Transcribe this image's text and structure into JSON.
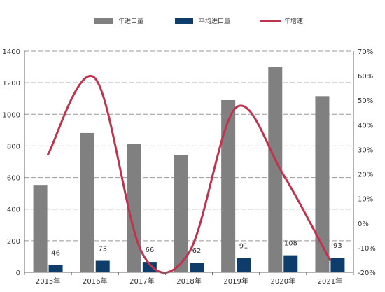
{
  "chart_data": {
    "type": "bar",
    "categories": [
      "2015年",
      "2016年",
      "2017年",
      "2018年",
      "2019年",
      "2020年",
      "2021年"
    ],
    "series": [
      {
        "name": "年进口量",
        "kind": "bar",
        "axis": "left",
        "color": "#808080",
        "values": [
          553,
          882,
          812,
          742,
          1090,
          1300,
          1115
        ]
      },
      {
        "name": "平均进口量",
        "kind": "bar",
        "axis": "left",
        "color": "#0e3d6b",
        "values": [
          46,
          73,
          66,
          62,
          91,
          108,
          93
        ]
      },
      {
        "name": "年增速",
        "kind": "line",
        "axis": "right",
        "color": "#c0334d",
        "values": [
          28,
          59,
          -12,
          -12,
          47,
          20,
          -15
        ]
      }
    ],
    "data_labels": [
      "46",
      "73",
      "66",
      "62",
      "91",
      "108",
      "93"
    ],
    "y_left": {
      "min": 0,
      "max": 1400,
      "step": 200,
      "ticks": [
        "0",
        "200",
        "400",
        "600",
        "800",
        "1000",
        "1200",
        "1400"
      ]
    },
    "y_right": {
      "min": -20,
      "max": 70,
      "step": 10,
      "ticks": [
        "-20%",
        "-10%",
        "0%",
        "10%",
        "20%",
        "30%",
        "40%",
        "50%",
        "60%",
        "70%"
      ]
    },
    "grid": true,
    "legend_position": "top"
  }
}
